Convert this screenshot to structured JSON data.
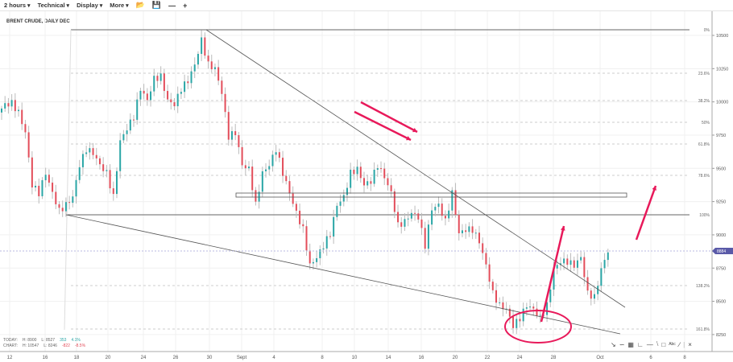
{
  "toolbar": {
    "interval": "2 hours",
    "technical": "Technical",
    "display": "Display",
    "more": "More",
    "icons": [
      "folder-open-icon",
      "save-icon",
      "zoom-out-icon",
      "zoom-in-icon"
    ]
  },
  "title": "BRENT CRUDE, DAILY DEC",
  "stats": {
    "today_label": "TODAY:",
    "today_high": "H: 8900",
    "today_low": "L: 8527",
    "today_change": "353",
    "today_pct": "4.1%",
    "chart_label": "CHART:",
    "chart_high": "H: 10547",
    "chart_low": "L: 8246",
    "chart_change": "-822",
    "chart_pct": "-8.5%"
  },
  "drawing_tools": [
    "cursor-icon",
    "curve-icon",
    "grid-icon",
    "fib-fan-icon",
    "horizontal-line-icon",
    "trend-line-icon",
    "rectangle-icon",
    "text-icon",
    "line-icon",
    "separator",
    "close-icon"
  ],
  "chart_data": {
    "type": "candlestick",
    "title": "BRENT CRUDE, DAILY DEC",
    "x_ticks": [
      "12",
      "16",
      "18",
      "20",
      "24",
      "26",
      "30",
      "Sept",
      "4",
      "8",
      "10",
      "14",
      "16",
      "20",
      "22",
      "24",
      "28",
      "Oct",
      "6",
      "8"
    ],
    "y_ticks": [
      10500,
      10250,
      10000,
      9750,
      9500,
      9250,
      9000,
      8750,
      8500,
      8250
    ],
    "ylim": [
      8200,
      10550
    ],
    "last_price": "8884",
    "fib_levels": [
      "0%",
      "23.6%",
      "38.2%",
      "50%",
      "61.8%",
      "78.6%",
      "100%",
      "138.2%",
      "161.8%"
    ],
    "closes": [
      9920,
      9980,
      9990,
      9920,
      9770,
      9375,
      9315,
      9465,
      9315,
      9180,
      9225,
      9285,
      9525,
      9645,
      9615,
      9525,
      9465,
      9285,
      9705,
      9800,
      9890,
      10100,
      10010,
      10175,
      10190,
      10010,
      9980,
      10100,
      10160,
      10280,
      10465,
      10280,
      10250,
      10070,
      9740,
      9770,
      9525,
      9495,
      9225,
      9465,
      9525,
      9645,
      9465,
      9315,
      9165,
      9040,
      8770,
      8830,
      8920,
      9010,
      9225,
      9285,
      9465,
      9495,
      9375,
      9405,
      9525,
      9435,
      9315,
      9070,
      9100,
      9165,
      9135,
      8920,
      9195,
      9225,
      9100,
      9315,
      9010,
      9040,
      9040,
      8950,
      8770,
      8560,
      8470,
      8440,
      8315,
      8375,
      8470,
      8440,
      8375,
      8470,
      8740,
      8800,
      8800,
      8770,
      8830,
      8560,
      8530,
      8740,
      8880
    ],
    "colors": {
      "up": "#2aa6a6",
      "down": "#e34d5a",
      "annotation": "#e8195a",
      "last_price_tag": "#5a5aa8"
    }
  }
}
